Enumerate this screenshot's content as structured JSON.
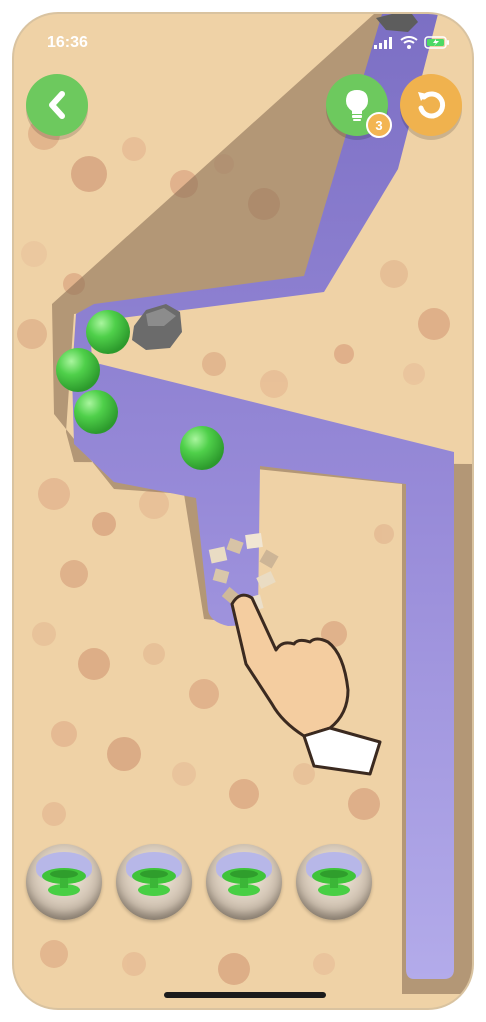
{
  "status_bar": {
    "time": "16:36",
    "signal_icon": "cellular-signal-icon",
    "wifi_icon": "wifi-icon",
    "battery_icon": "battery-charging-icon"
  },
  "toolbar": {
    "back_icon": "chevron-left-icon",
    "hint_icon": "lightbulb-icon",
    "hint_count": "3",
    "restart_icon": "restart-arrow-icon"
  },
  "game": {
    "balls_count": 4,
    "cups_count": 4,
    "colors": {
      "sand": "#efd2a6",
      "channel": "#8f84cf",
      "ball": "#4fd04a",
      "button_green": "#6dc95e",
      "button_orange": "#f0b24e"
    }
  }
}
